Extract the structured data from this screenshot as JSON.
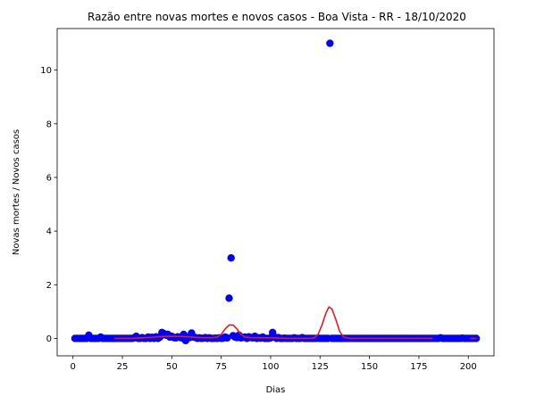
{
  "chart_data": {
    "type": "scatter",
    "title": "Razão entre novas mortes e novos casos - Boa Vista - RR - 18/10/2020",
    "xlabel": "Dias",
    "ylabel": "Novas mortes / Novos casos",
    "xlim": [
      -8,
      213
    ],
    "ylim": [
      -0.65,
      11.55
    ],
    "xticks": [
      0,
      25,
      50,
      75,
      100,
      125,
      150,
      175,
      200
    ],
    "yticks": [
      0,
      2,
      4,
      6,
      8,
      10
    ],
    "grid": false,
    "legend": "none",
    "colors": {
      "points": "#0000ff",
      "smooth": "#e41a1c",
      "axes": "#000000"
    },
    "scatter_points": [
      [
        1,
        0
      ],
      [
        2,
        0
      ],
      [
        3,
        0
      ],
      [
        4,
        0
      ],
      [
        5,
        0
      ],
      [
        6,
        0
      ],
      [
        7,
        0
      ],
      [
        8,
        0.12
      ],
      [
        9,
        0
      ],
      [
        10,
        0
      ],
      [
        11,
        0
      ],
      [
        12,
        0
      ],
      [
        13,
        0
      ],
      [
        14,
        0.05
      ],
      [
        15,
        0
      ],
      [
        16,
        0
      ],
      [
        17,
        0
      ],
      [
        18,
        0
      ],
      [
        19,
        0
      ],
      [
        20,
        0
      ],
      [
        21,
        0
      ],
      [
        22,
        0
      ],
      [
        23,
        0
      ],
      [
        24,
        0
      ],
      [
        25,
        0
      ],
      [
        26,
        0
      ],
      [
        27,
        0
      ],
      [
        28,
        0
      ],
      [
        29,
        0
      ],
      [
        30,
        0
      ],
      [
        31,
        0.02
      ],
      [
        32,
        0.08
      ],
      [
        33,
        0
      ],
      [
        34,
        0
      ],
      [
        35,
        0.03
      ],
      [
        36,
        0
      ],
      [
        37,
        0
      ],
      [
        38,
        0.05
      ],
      [
        39,
        0
      ],
      [
        40,
        0.04
      ],
      [
        41,
        0
      ],
      [
        42,
        0.06
      ],
      [
        43,
        0
      ],
      [
        44,
        0.05
      ],
      [
        45,
        0.22
      ],
      [
        46,
        0.18
      ],
      [
        47,
        0.12
      ],
      [
        48,
        0.15
      ],
      [
        49,
        0.05
      ],
      [
        50,
        0.08
      ],
      [
        51,
        0.03
      ],
      [
        52,
        0.02
      ],
      [
        53,
        0.06
      ],
      [
        54,
        0.04
      ],
      [
        55,
        0.02
      ],
      [
        56,
        0.15
      ],
      [
        57,
        -0.08
      ],
      [
        58,
        0.05
      ],
      [
        59,
        0.03
      ],
      [
        60,
        0.2
      ],
      [
        61,
        0.05
      ],
      [
        62,
        0.03
      ],
      [
        63,
        0
      ],
      [
        64,
        0.02
      ],
      [
        65,
        0
      ],
      [
        66,
        0.01
      ],
      [
        67,
        0.03
      ],
      [
        68,
        0
      ],
      [
        69,
        0.02
      ],
      [
        70,
        0
      ],
      [
        71,
        0
      ],
      [
        72,
        0.01
      ],
      [
        73,
        0
      ],
      [
        74,
        0.02
      ],
      [
        75,
        0
      ],
      [
        76,
        0.01
      ],
      [
        77,
        0.05
      ],
      [
        78,
        0.02
      ],
      [
        79,
        1.5
      ],
      [
        80,
        3.0
      ],
      [
        81,
        0.1
      ],
      [
        82,
        0.05
      ],
      [
        83,
        0.03
      ],
      [
        84,
        0.12
      ],
      [
        85,
        0.02
      ],
      [
        86,
        0.04
      ],
      [
        87,
        0.05
      ],
      [
        88,
        0
      ],
      [
        89,
        0.06
      ],
      [
        90,
        0.03
      ],
      [
        91,
        0.02
      ],
      [
        92,
        0.08
      ],
      [
        93,
        0
      ],
      [
        94,
        0.02
      ],
      [
        95,
        0.01
      ],
      [
        96,
        0.05
      ],
      [
        97,
        0
      ],
      [
        98,
        0
      ],
      [
        99,
        0
      ],
      [
        100,
        0.02
      ],
      [
        101,
        0.22
      ],
      [
        102,
        0.05
      ],
      [
        103,
        0
      ],
      [
        104,
        0.03
      ],
      [
        105,
        0
      ],
      [
        106,
        0
      ],
      [
        107,
        0.01
      ],
      [
        108,
        0
      ],
      [
        109,
        0
      ],
      [
        110,
        0
      ],
      [
        111,
        0
      ],
      [
        112,
        0.02
      ],
      [
        113,
        0
      ],
      [
        114,
        0
      ],
      [
        115,
        0
      ],
      [
        116,
        0.03
      ],
      [
        117,
        0
      ],
      [
        118,
        0
      ],
      [
        119,
        0
      ],
      [
        120,
        0
      ],
      [
        121,
        0
      ],
      [
        122,
        0
      ],
      [
        123,
        0
      ],
      [
        124,
        0.01
      ],
      [
        125,
        0
      ],
      [
        126,
        0
      ],
      [
        127,
        0
      ],
      [
        128,
        0
      ],
      [
        129,
        0
      ],
      [
        130,
        11.0
      ],
      [
        131,
        0
      ],
      [
        132,
        0
      ],
      [
        133,
        0
      ],
      [
        134,
        0
      ],
      [
        135,
        0
      ],
      [
        136,
        0
      ],
      [
        137,
        0
      ],
      [
        138,
        0
      ],
      [
        139,
        0
      ],
      [
        140,
        0
      ],
      [
        141,
        0
      ],
      [
        142,
        0
      ],
      [
        143,
        0
      ],
      [
        144,
        0
      ],
      [
        145,
        0
      ],
      [
        146,
        0
      ],
      [
        147,
        0
      ],
      [
        148,
        0
      ],
      [
        149,
        0
      ],
      [
        150,
        0
      ],
      [
        151,
        0
      ],
      [
        152,
        0
      ],
      [
        153,
        0
      ],
      [
        154,
        0
      ],
      [
        155,
        0
      ],
      [
        156,
        0
      ],
      [
        157,
        0
      ],
      [
        158,
        0
      ],
      [
        159,
        0
      ],
      [
        160,
        0
      ],
      [
        161,
        0
      ],
      [
        162,
        0
      ],
      [
        163,
        0
      ],
      [
        164,
        0
      ],
      [
        165,
        0
      ],
      [
        166,
        0
      ],
      [
        167,
        0
      ],
      [
        168,
        0
      ],
      [
        169,
        0
      ],
      [
        170,
        0
      ],
      [
        171,
        0
      ],
      [
        172,
        0
      ],
      [
        173,
        0
      ],
      [
        174,
        0
      ],
      [
        175,
        0
      ],
      [
        176,
        0
      ],
      [
        177,
        0
      ],
      [
        178,
        0
      ],
      [
        179,
        0
      ],
      [
        180,
        0
      ],
      [
        181,
        0
      ],
      [
        182,
        0
      ],
      [
        183,
        0
      ],
      [
        184,
        0
      ],
      [
        185,
        0
      ],
      [
        186,
        0.02
      ],
      [
        187,
        0
      ],
      [
        188,
        0
      ],
      [
        189,
        0
      ],
      [
        190,
        0
      ],
      [
        191,
        0
      ],
      [
        192,
        0
      ],
      [
        193,
        0
      ],
      [
        194,
        0
      ],
      [
        195,
        0
      ],
      [
        196,
        0
      ],
      [
        197,
        0.01
      ],
      [
        198,
        0
      ],
      [
        199,
        0
      ],
      [
        200,
        0
      ],
      [
        201,
        0
      ],
      [
        202,
        0
      ],
      [
        203,
        0
      ],
      [
        204,
        0
      ]
    ],
    "smooth_line": [
      [
        21,
        0
      ],
      [
        30,
        0
      ],
      [
        35,
        0.02
      ],
      [
        40,
        0.04
      ],
      [
        45,
        0.07
      ],
      [
        50,
        0.08
      ],
      [
        55,
        0.07
      ],
      [
        60,
        0.05
      ],
      [
        65,
        0.03
      ],
      [
        70,
        0.02
      ],
      [
        73,
        0.05
      ],
      [
        75,
        0.15
      ],
      [
        77,
        0.35
      ],
      [
        79,
        0.5
      ],
      [
        81,
        0.5
      ],
      [
        83,
        0.35
      ],
      [
        85,
        0.15
      ],
      [
        87,
        0.05
      ],
      [
        90,
        0.03
      ],
      [
        95,
        0.02
      ],
      [
        100,
        0.02
      ],
      [
        105,
        0.01
      ],
      [
        110,
        0
      ],
      [
        115,
        0
      ],
      [
        120,
        0
      ],
      [
        122,
        0.02
      ],
      [
        124,
        0.15
      ],
      [
        126,
        0.5
      ],
      [
        128,
        0.95
      ],
      [
        129.5,
        1.17
      ],
      [
        131,
        1.1
      ],
      [
        133,
        0.7
      ],
      [
        135,
        0.25
      ],
      [
        137,
        0.05
      ],
      [
        140,
        0
      ],
      [
        150,
        0
      ],
      [
        160,
        0
      ],
      [
        170,
        0
      ],
      [
        182,
        0
      ]
    ],
    "smooth_tail": [
      [
        201,
        0
      ],
      [
        204,
        0
      ]
    ]
  }
}
